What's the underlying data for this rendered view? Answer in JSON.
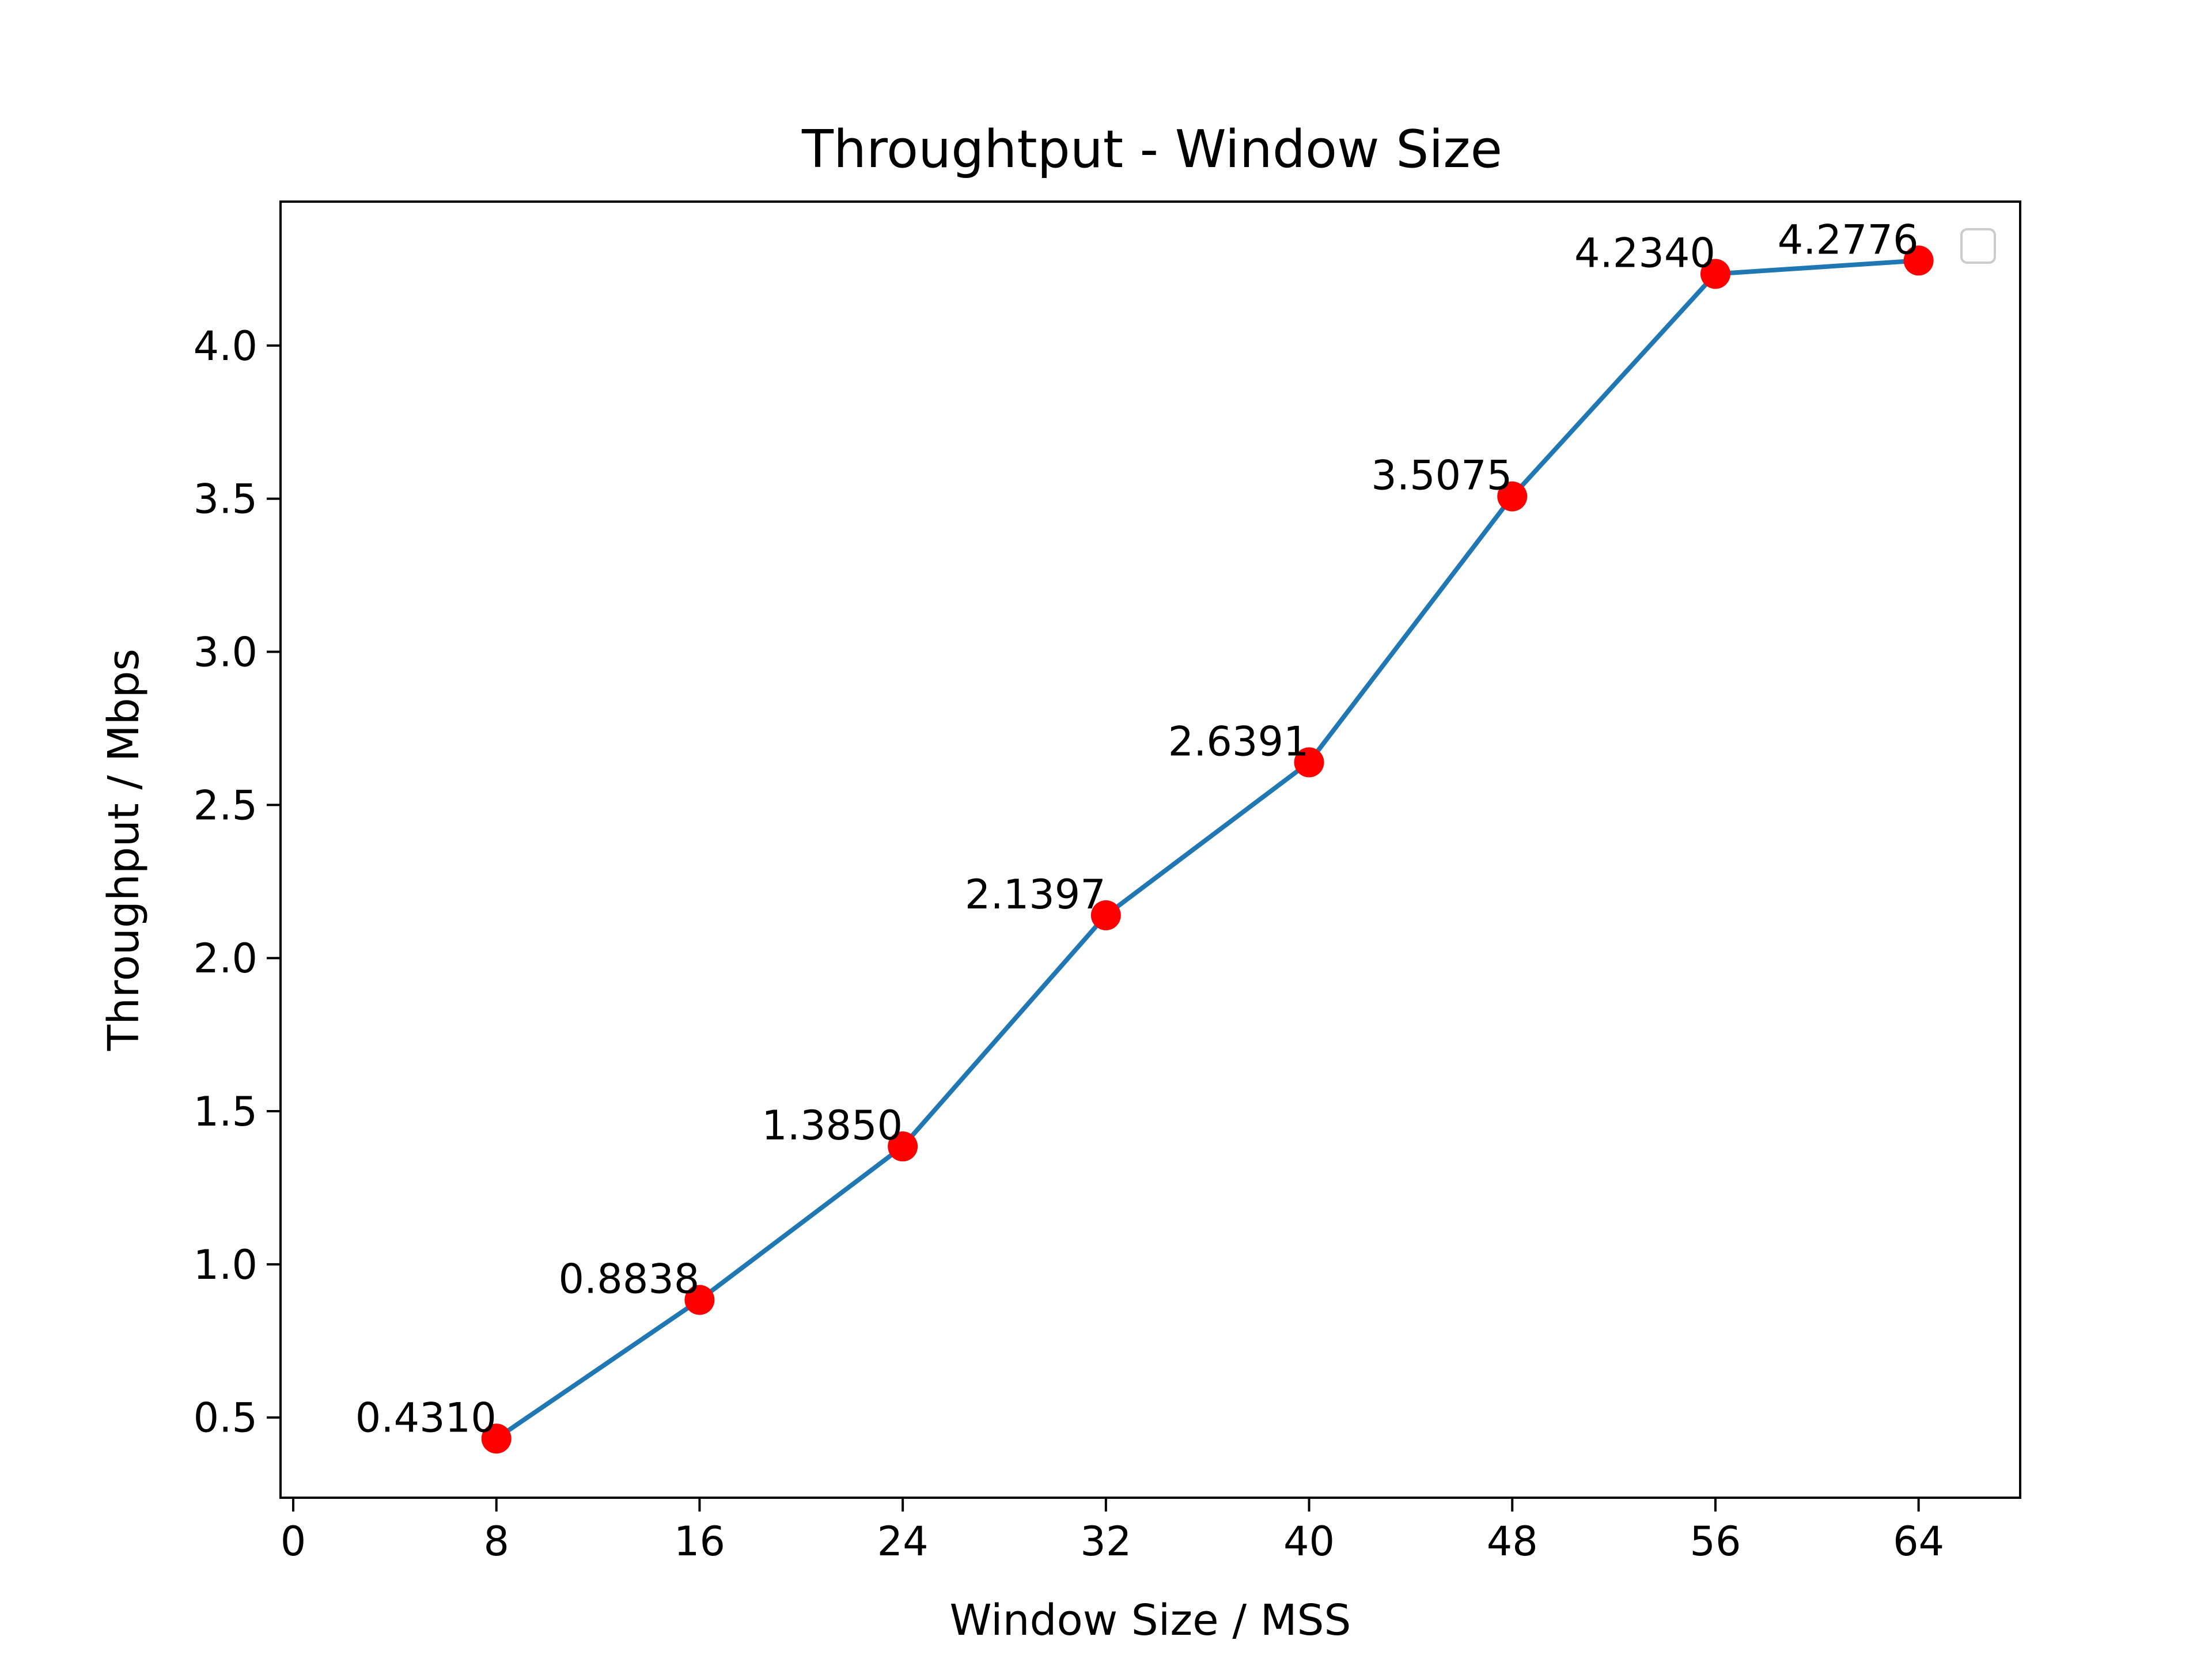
{
  "chart_data": {
    "type": "line",
    "title": "Throughtput - Window Size",
    "xlabel": "Window Size / MSS",
    "ylabel": "Throughput / Mbps",
    "x": [
      8,
      16,
      24,
      32,
      40,
      48,
      56,
      64
    ],
    "series": [
      {
        "values": [
          0.431,
          0.8838,
          1.385,
          2.1397,
          2.6391,
          3.5075,
          4.234,
          4.2776
        ],
        "labels": [
          "0.4310",
          "0.8838",
          "1.3850",
          "2.1397",
          "2.6391",
          "3.5075",
          "4.2340",
          "4.2776"
        ],
        "line_color": "#1f77b4",
        "marker_color": "#ff0000"
      }
    ],
    "x_ticks": [
      "0",
      "8",
      "16",
      "24",
      "32",
      "40",
      "48",
      "56",
      "64"
    ],
    "y_ticks": [
      "0.5",
      "1.0",
      "1.5",
      "2.0",
      "2.5",
      "3.0",
      "3.5",
      "4.0"
    ],
    "xlim": [
      -0.5,
      68
    ],
    "ylim": [
      0.238,
      4.47
    ],
    "grid": false,
    "legend": "top-right, empty"
  }
}
